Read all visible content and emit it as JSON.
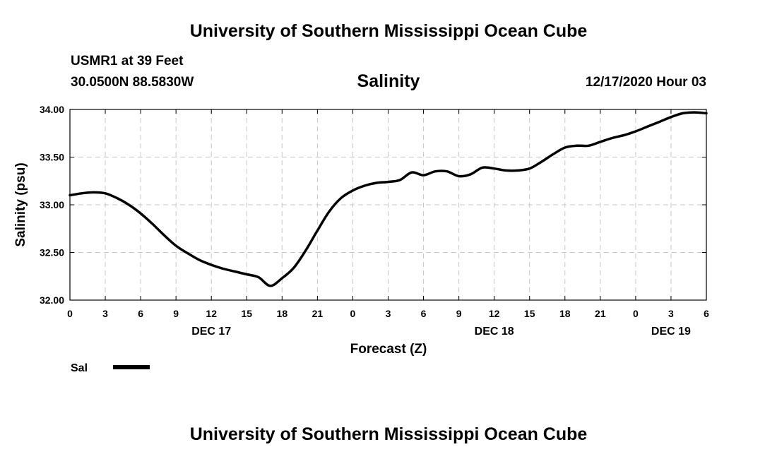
{
  "header": {
    "title": "University of Southern Mississippi Ocean Cube",
    "station": "USMR1 at 39 Feet",
    "location": "30.0500N 88.5830W",
    "chart_title": "Salinity",
    "timestamp": "12/17/2020 Hour 03"
  },
  "footer": {
    "title": "University of Southern Mississippi Ocean Cube"
  },
  "legend": {
    "label": "Sal"
  },
  "colors": {
    "line": "#000000",
    "grid": "#c8c8c8",
    "background": "#ffffff"
  },
  "chart_data": {
    "type": "line",
    "title": "Salinity",
    "xlabel": "Forecast (Z)",
    "ylabel": "Salinity (psu)",
    "x_unit": "hours since 12/17/2020 00Z",
    "xlim": [
      0,
      54
    ],
    "ylim": [
      32.0,
      34.0
    ],
    "x_ticks": [
      0,
      3,
      6,
      9,
      12,
      15,
      18,
      21,
      24,
      27,
      30,
      33,
      36,
      39,
      42,
      45,
      48,
      51,
      54
    ],
    "x_tick_labels": [
      "0",
      "3",
      "6",
      "9",
      "12",
      "15",
      "18",
      "21",
      "0",
      "3",
      "6",
      "9",
      "12",
      "15",
      "18",
      "21",
      "0",
      "3",
      "6"
    ],
    "date_labels": [
      {
        "x": 12,
        "label": "DEC 17"
      },
      {
        "x": 36,
        "label": "DEC 18"
      },
      {
        "x": 51,
        "label": "DEC 19"
      }
    ],
    "y_ticks": [
      32.0,
      32.5,
      33.0,
      33.5,
      34.0
    ],
    "y_tick_labels": [
      "32.00",
      "32.50",
      "33.00",
      "33.50",
      "34.00"
    ],
    "grid": true,
    "legend_position": "bottom-left",
    "series": [
      {
        "name": "Sal",
        "x": [
          0,
          1,
          2,
          3,
          4,
          5,
          6,
          7,
          8,
          9,
          10,
          11,
          12,
          13,
          14,
          15,
          16,
          17,
          18,
          19,
          20,
          21,
          22,
          23,
          24,
          25,
          26,
          27,
          28,
          29,
          30,
          31,
          32,
          33,
          34,
          35,
          36,
          37,
          38,
          39,
          40,
          41,
          42,
          43,
          44,
          45,
          46,
          47,
          48,
          49,
          50,
          51,
          52,
          53,
          54
        ],
        "values": [
          33.1,
          33.12,
          33.13,
          33.12,
          33.07,
          33.0,
          32.91,
          32.8,
          32.68,
          32.57,
          32.49,
          32.42,
          32.37,
          32.33,
          32.3,
          32.27,
          32.24,
          32.15,
          32.23,
          32.34,
          32.52,
          32.73,
          32.93,
          33.07,
          33.15,
          33.2,
          33.23,
          33.24,
          33.26,
          33.34,
          33.31,
          33.35,
          33.35,
          33.3,
          33.32,
          33.39,
          33.38,
          33.36,
          33.36,
          33.38,
          33.45,
          33.53,
          33.6,
          33.62,
          33.62,
          33.66,
          33.7,
          33.73,
          33.77,
          33.82,
          33.87,
          33.92,
          33.96,
          33.97,
          33.96
        ]
      }
    ]
  }
}
